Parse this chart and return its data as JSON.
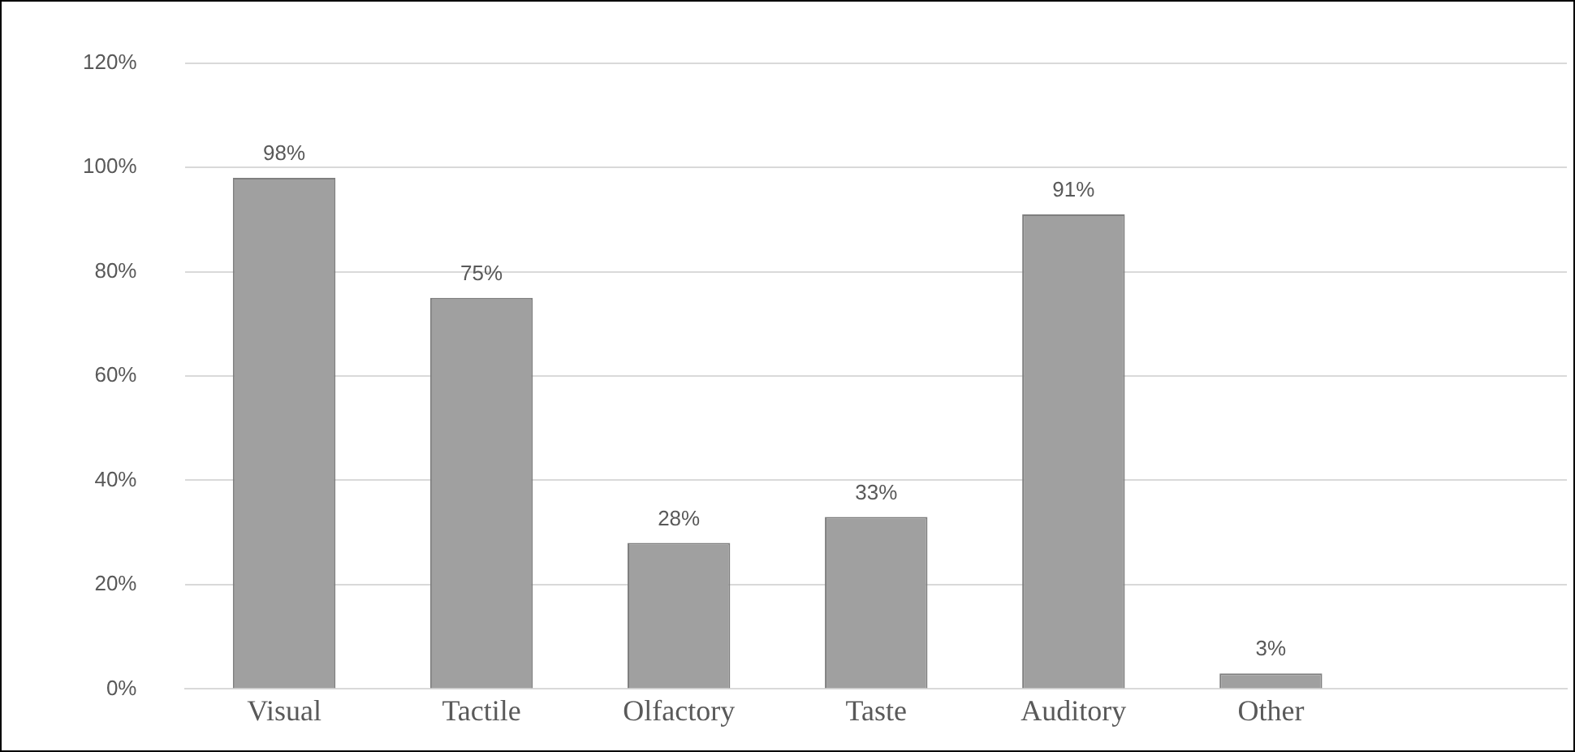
{
  "chart_data": {
    "type": "bar",
    "categories": [
      "Visual",
      "Tactile",
      "Olfactory",
      "Taste",
      "Auditory",
      "Other",
      null
    ],
    "values": [
      98,
      75,
      28,
      33,
      91,
      3,
      null
    ],
    "value_labels": [
      "98%",
      "75%",
      "28%",
      "33%",
      "91%",
      "3%",
      null
    ],
    "color": "#a0a0a0",
    "ylim": [
      0,
      120
    ],
    "yticks": [
      {
        "value": 0,
        "label": "0%"
      },
      {
        "value": 20,
        "label": "20%"
      },
      {
        "value": 40,
        "label": "40%"
      },
      {
        "value": 60,
        "label": "60%"
      },
      {
        "value": 80,
        "label": "80%"
      },
      {
        "value": 100,
        "label": "100%"
      },
      {
        "value": 120,
        "label": "120%"
      }
    ],
    "grid": "y",
    "legend": false
  }
}
